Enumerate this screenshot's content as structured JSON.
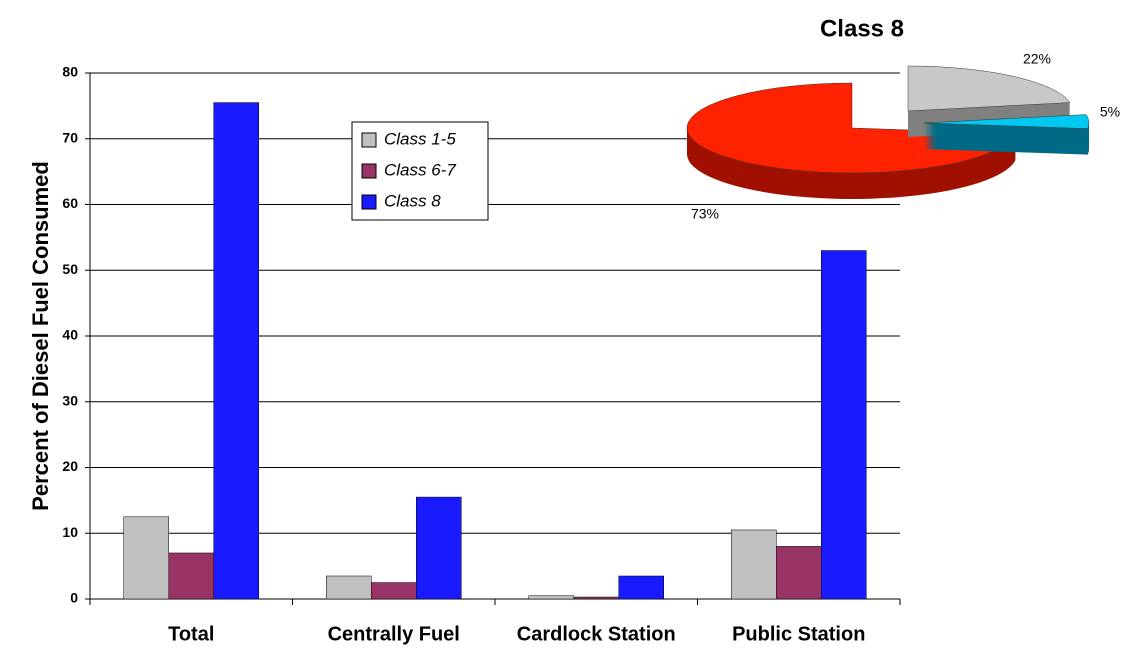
{
  "chart_data": [
    {
      "type": "bar",
      "y_label": "Percent of Diesel Fuel Consumed",
      "categories": [
        "Total",
        "Centrally Fuel",
        "Cardlock Station",
        "Public Station"
      ],
      "series": [
        {
          "name": "Class 1-5",
          "color": "#c0c0c0",
          "values": [
            12.5,
            3.5,
            0.5,
            10.5
          ]
        },
        {
          "name": "Class 6-7",
          "color": "#993366",
          "values": [
            7,
            2.5,
            0.3,
            8
          ]
        },
        {
          "name": "Class 8",
          "color": "#1a1aff",
          "values": [
            75.5,
            15.5,
            3.5,
            53
          ]
        }
      ],
      "ylim": [
        0,
        80
      ],
      "yticks": [
        0,
        10,
        20,
        30,
        40,
        50,
        60,
        70,
        80
      ],
      "grid": true
    },
    {
      "type": "pie",
      "title": "Class 8",
      "values": [
        22,
        5,
        73
      ],
      "value_labels": [
        "22%",
        "5%",
        "73%"
      ],
      "colors": [
        "#c8c8c8",
        "#00c8f0",
        "#ff2200"
      ]
    }
  ]
}
